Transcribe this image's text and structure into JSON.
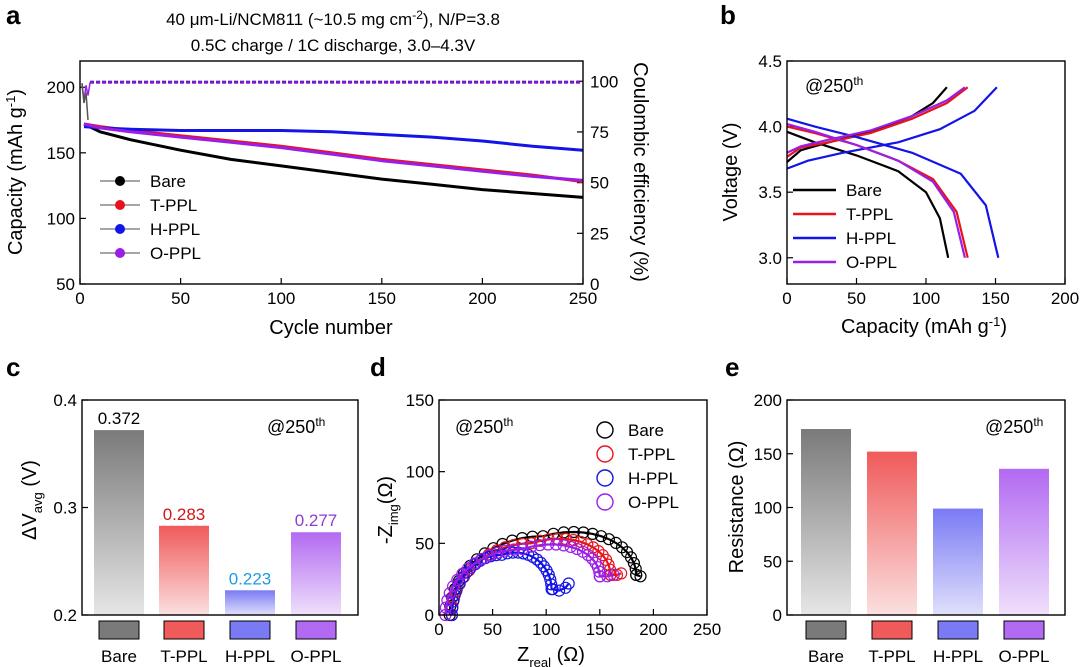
{
  "chart_data": [
    {
      "panel": "a",
      "type": "line",
      "title_line1": "40 μm-Li/NCM811 (~10.5 mg cm",
      "title_line1_sup": "-2",
      "title_line1_tail": "), N/P=3.8",
      "title_line2": "0.5C charge / 1C discharge, 3.0–4.3V",
      "xlabel": "Cycle number",
      "ylabel_left": "Capacity (mAh g",
      "ylabel_left_sup": "-1",
      "ylabel_left_tail": ")",
      "ylabel_right": "Coulombic efficiency (%)",
      "xlim": [
        0,
        250
      ],
      "ylim_left": [
        50,
        220
      ],
      "ylim_right": [
        0,
        110
      ],
      "xticks": [
        0,
        50,
        100,
        150,
        200,
        250
      ],
      "yticks_left": [
        50,
        100,
        150,
        200
      ],
      "yticks_right": [
        0,
        25,
        50,
        75,
        100
      ],
      "legend_loc": "lower-left",
      "series": [
        {
          "name": "Bare",
          "color": "#000000",
          "x": [
            2,
            10,
            25,
            50,
            75,
            100,
            125,
            150,
            175,
            200,
            225,
            250
          ],
          "capacity": [
            172,
            166,
            160,
            152,
            145,
            140,
            135,
            130,
            126,
            122,
            119,
            116
          ],
          "ce": 99.5
        },
        {
          "name": "T-PPL",
          "color": "#e8141c",
          "x": [
            2,
            10,
            25,
            50,
            75,
            100,
            125,
            150,
            175,
            200,
            225,
            250
          ],
          "capacity": [
            172,
            170,
            167,
            163,
            159,
            155,
            150,
            145,
            141,
            137,
            133,
            128
          ],
          "ce": 99.6
        },
        {
          "name": "H-PPL",
          "color": "#1414e6",
          "x": [
            2,
            10,
            25,
            50,
            75,
            100,
            125,
            150,
            175,
            200,
            225,
            250
          ],
          "capacity": [
            170,
            169,
            168,
            167,
            167,
            167,
            166,
            164,
            162,
            159,
            155,
            152
          ],
          "ce": 99.7
        },
        {
          "name": "O-PPL",
          "color": "#9b1ee6",
          "x": [
            2,
            10,
            25,
            50,
            75,
            100,
            125,
            150,
            175,
            200,
            225,
            250
          ],
          "capacity": [
            172,
            169,
            166,
            162,
            158,
            154,
            149,
            144,
            140,
            136,
            132,
            129
          ],
          "ce": 99.3
        }
      ]
    },
    {
      "panel": "b",
      "type": "line",
      "annotation": "@250",
      "annotation_sup": "th",
      "xlabel": "Capacity (mAh g",
      "xlabel_sup": "-1",
      "xlabel_tail": ")",
      "ylabel": "Voltage (V)",
      "xlim": [
        0,
        200
      ],
      "ylim": [
        2.8,
        4.5
      ],
      "xticks": [
        0,
        50,
        100,
        150,
        200
      ],
      "yticks": [
        3.0,
        3.5,
        4.0,
        4.5
      ],
      "yticklabels": [
        "3.0",
        "3.5",
        "4.0",
        "4.5"
      ],
      "legend_loc": "lower-left",
      "series": [
        {
          "name": "Bare",
          "color": "#000000",
          "charge": [
            [
              0,
              3.73
            ],
            [
              10,
              3.82
            ],
            [
              30,
              3.88
            ],
            [
              60,
              3.96
            ],
            [
              90,
              4.08
            ],
            [
              105,
              4.18
            ],
            [
              115,
              4.3
            ]
          ],
          "discharge": [
            [
              0,
              3.96
            ],
            [
              20,
              3.88
            ],
            [
              50,
              3.78
            ],
            [
              80,
              3.66
            ],
            [
              100,
              3.5
            ],
            [
              110,
              3.3
            ],
            [
              116,
              3.0
            ]
          ]
        },
        {
          "name": "T-PPL",
          "color": "#e8141c",
          "charge": [
            [
              0,
              3.77
            ],
            [
              10,
              3.84
            ],
            [
              30,
              3.88
            ],
            [
              60,
              3.95
            ],
            [
              90,
              4.06
            ],
            [
              115,
              4.18
            ],
            [
              130,
              4.3
            ]
          ],
          "discharge": [
            [
              0,
              4.0
            ],
            [
              20,
              3.95
            ],
            [
              50,
              3.86
            ],
            [
              80,
              3.74
            ],
            [
              105,
              3.6
            ],
            [
              122,
              3.35
            ],
            [
              130,
              3.0
            ]
          ]
        },
        {
          "name": "H-PPL",
          "color": "#1414e6",
          "charge": [
            [
              0,
              3.68
            ],
            [
              15,
              3.74
            ],
            [
              40,
              3.8
            ],
            [
              80,
              3.88
            ],
            [
              110,
              3.98
            ],
            [
              135,
              4.12
            ],
            [
              151,
              4.3
            ]
          ],
          "discharge": [
            [
              0,
              4.06
            ],
            [
              20,
              4.0
            ],
            [
              50,
              3.92
            ],
            [
              90,
              3.8
            ],
            [
              125,
              3.64
            ],
            [
              143,
              3.4
            ],
            [
              152,
              3.0
            ]
          ]
        },
        {
          "name": "O-PPL",
          "color": "#9b1ee6",
          "charge": [
            [
              0,
              3.8
            ],
            [
              10,
              3.85
            ],
            [
              30,
              3.9
            ],
            [
              60,
              3.97
            ],
            [
              90,
              4.08
            ],
            [
              115,
              4.2
            ],
            [
              128,
              4.3
            ]
          ],
          "discharge": [
            [
              0,
              4.02
            ],
            [
              20,
              3.96
            ],
            [
              50,
              3.86
            ],
            [
              80,
              3.74
            ],
            [
              105,
              3.58
            ],
            [
              120,
              3.35
            ],
            [
              128,
              3.0
            ]
          ]
        }
      ]
    },
    {
      "panel": "c",
      "type": "bar",
      "annotation": "@250",
      "annotation_sup": "th",
      "ylabel": "ΔV",
      "ylabel_sub": "avg",
      "ylabel_tail": " (V)",
      "ylim": [
        0.2,
        0.4
      ],
      "yticks": [
        0.2,
        0.3,
        0.4
      ],
      "yticklabels": [
        "0.2",
        "0.3",
        "0.4"
      ],
      "categories": [
        "Bare",
        "T-PPL",
        "H-PPL",
        "O-PPL"
      ],
      "values": [
        0.372,
        0.283,
        0.223,
        0.277
      ],
      "value_labels": [
        "0.372",
        "0.283",
        "0.223",
        "0.277"
      ],
      "label_colors": [
        "#000000",
        "#d3141c",
        "#1e9be6",
        "#8c3cd2"
      ],
      "colors": [
        "#7a7a7a",
        "#f05a5a",
        "#7a7af5",
        "#b26af2"
      ]
    },
    {
      "panel": "d",
      "type": "scatter",
      "annotation": "@250",
      "annotation_sup": "th",
      "xlabel": "Z",
      "xlabel_sub": "real",
      "xlabel_tail": " (Ω)",
      "ylabel": "-Z",
      "ylabel_sub": "img",
      "ylabel_tail": "(Ω)",
      "xlim": [
        0,
        250
      ],
      "ylim": [
        0,
        150
      ],
      "xticks": [
        0,
        50,
        100,
        150,
        200,
        250
      ],
      "yticks": [
        0,
        50,
        100,
        150
      ],
      "legend_loc": "top-right",
      "series": [
        {
          "name": "Bare",
          "color": "#000000",
          "x0": 10,
          "x1": 184,
          "height": 55,
          "tail": [
            [
              184,
              28
            ],
            [
              188,
              27
            ]
          ]
        },
        {
          "name": "T-PPL",
          "color": "#e8141c",
          "x0": 12,
          "x1": 160,
          "height": 50,
          "tail": [
            [
              160,
              28
            ],
            [
              166,
              28
            ],
            [
              170,
              29
            ]
          ]
        },
        {
          "name": "H-PPL",
          "color": "#1414e6",
          "x0": 12,
          "x1": 105,
          "height": 42,
          "tail": [
            [
              106,
              18
            ],
            [
              112,
              17
            ],
            [
              118,
              19
            ],
            [
              121,
              22
            ]
          ]
        },
        {
          "name": "O-PPL",
          "color": "#9b1ee6",
          "x0": 6,
          "x1": 150,
          "height": 46,
          "tail": [
            [
              150,
              27
            ],
            [
              157,
              27
            ],
            [
              163,
              28
            ]
          ]
        }
      ]
    },
    {
      "panel": "e",
      "type": "bar",
      "annotation": "@250",
      "annotation_sup": "th",
      "ylabel": "Resistance (Ω)",
      "ylim": [
        0,
        200
      ],
      "yticks": [
        0,
        50,
        100,
        150,
        200
      ],
      "categories": [
        "Bare",
        "T-PPL",
        "H-PPL",
        "O-PPL"
      ],
      "values": [
        173,
        152,
        99,
        136
      ],
      "colors": [
        "#7a7a7a",
        "#f05a5a",
        "#7a7af5",
        "#b26af2"
      ]
    }
  ]
}
